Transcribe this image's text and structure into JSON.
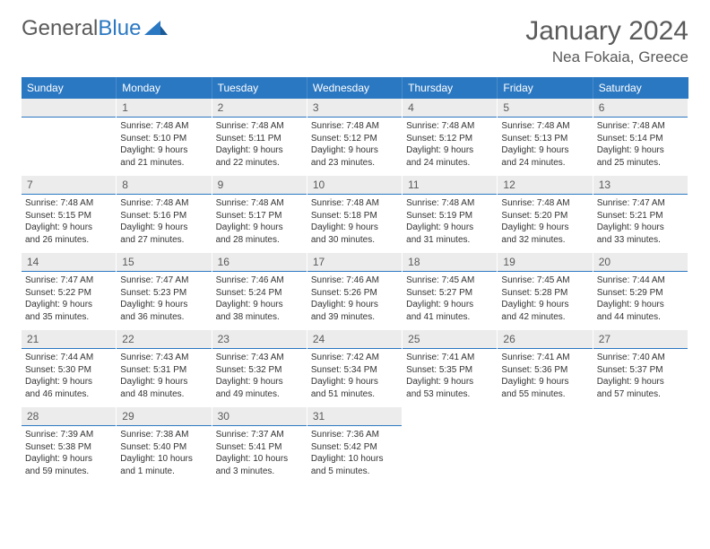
{
  "brand": {
    "part1": "General",
    "part2": "Blue"
  },
  "title": "January 2024",
  "location": "Nea Fokaia, Greece",
  "colors": {
    "accent": "#2b78c2",
    "dayHeader": "#ececec",
    "text": "#5a5a5a"
  },
  "weekdays": [
    "Sunday",
    "Monday",
    "Tuesday",
    "Wednesday",
    "Thursday",
    "Friday",
    "Saturday"
  ],
  "weeks": [
    [
      {
        "day": "",
        "lines": []
      },
      {
        "day": "1",
        "lines": [
          "Sunrise: 7:48 AM",
          "Sunset: 5:10 PM",
          "Daylight: 9 hours",
          "and 21 minutes."
        ]
      },
      {
        "day": "2",
        "lines": [
          "Sunrise: 7:48 AM",
          "Sunset: 5:11 PM",
          "Daylight: 9 hours",
          "and 22 minutes."
        ]
      },
      {
        "day": "3",
        "lines": [
          "Sunrise: 7:48 AM",
          "Sunset: 5:12 PM",
          "Daylight: 9 hours",
          "and 23 minutes."
        ]
      },
      {
        "day": "4",
        "lines": [
          "Sunrise: 7:48 AM",
          "Sunset: 5:12 PM",
          "Daylight: 9 hours",
          "and 24 minutes."
        ]
      },
      {
        "day": "5",
        "lines": [
          "Sunrise: 7:48 AM",
          "Sunset: 5:13 PM",
          "Daylight: 9 hours",
          "and 24 minutes."
        ]
      },
      {
        "day": "6",
        "lines": [
          "Sunrise: 7:48 AM",
          "Sunset: 5:14 PM",
          "Daylight: 9 hours",
          "and 25 minutes."
        ]
      }
    ],
    [
      {
        "day": "7",
        "lines": [
          "Sunrise: 7:48 AM",
          "Sunset: 5:15 PM",
          "Daylight: 9 hours",
          "and 26 minutes."
        ]
      },
      {
        "day": "8",
        "lines": [
          "Sunrise: 7:48 AM",
          "Sunset: 5:16 PM",
          "Daylight: 9 hours",
          "and 27 minutes."
        ]
      },
      {
        "day": "9",
        "lines": [
          "Sunrise: 7:48 AM",
          "Sunset: 5:17 PM",
          "Daylight: 9 hours",
          "and 28 minutes."
        ]
      },
      {
        "day": "10",
        "lines": [
          "Sunrise: 7:48 AM",
          "Sunset: 5:18 PM",
          "Daylight: 9 hours",
          "and 30 minutes."
        ]
      },
      {
        "day": "11",
        "lines": [
          "Sunrise: 7:48 AM",
          "Sunset: 5:19 PM",
          "Daylight: 9 hours",
          "and 31 minutes."
        ]
      },
      {
        "day": "12",
        "lines": [
          "Sunrise: 7:48 AM",
          "Sunset: 5:20 PM",
          "Daylight: 9 hours",
          "and 32 minutes."
        ]
      },
      {
        "day": "13",
        "lines": [
          "Sunrise: 7:47 AM",
          "Sunset: 5:21 PM",
          "Daylight: 9 hours",
          "and 33 minutes."
        ]
      }
    ],
    [
      {
        "day": "14",
        "lines": [
          "Sunrise: 7:47 AM",
          "Sunset: 5:22 PM",
          "Daylight: 9 hours",
          "and 35 minutes."
        ]
      },
      {
        "day": "15",
        "lines": [
          "Sunrise: 7:47 AM",
          "Sunset: 5:23 PM",
          "Daylight: 9 hours",
          "and 36 minutes."
        ]
      },
      {
        "day": "16",
        "lines": [
          "Sunrise: 7:46 AM",
          "Sunset: 5:24 PM",
          "Daylight: 9 hours",
          "and 38 minutes."
        ]
      },
      {
        "day": "17",
        "lines": [
          "Sunrise: 7:46 AM",
          "Sunset: 5:26 PM",
          "Daylight: 9 hours",
          "and 39 minutes."
        ]
      },
      {
        "day": "18",
        "lines": [
          "Sunrise: 7:45 AM",
          "Sunset: 5:27 PM",
          "Daylight: 9 hours",
          "and 41 minutes."
        ]
      },
      {
        "day": "19",
        "lines": [
          "Sunrise: 7:45 AM",
          "Sunset: 5:28 PM",
          "Daylight: 9 hours",
          "and 42 minutes."
        ]
      },
      {
        "day": "20",
        "lines": [
          "Sunrise: 7:44 AM",
          "Sunset: 5:29 PM",
          "Daylight: 9 hours",
          "and 44 minutes."
        ]
      }
    ],
    [
      {
        "day": "21",
        "lines": [
          "Sunrise: 7:44 AM",
          "Sunset: 5:30 PM",
          "Daylight: 9 hours",
          "and 46 minutes."
        ]
      },
      {
        "day": "22",
        "lines": [
          "Sunrise: 7:43 AM",
          "Sunset: 5:31 PM",
          "Daylight: 9 hours",
          "and 48 minutes."
        ]
      },
      {
        "day": "23",
        "lines": [
          "Sunrise: 7:43 AM",
          "Sunset: 5:32 PM",
          "Daylight: 9 hours",
          "and 49 minutes."
        ]
      },
      {
        "day": "24",
        "lines": [
          "Sunrise: 7:42 AM",
          "Sunset: 5:34 PM",
          "Daylight: 9 hours",
          "and 51 minutes."
        ]
      },
      {
        "day": "25",
        "lines": [
          "Sunrise: 7:41 AM",
          "Sunset: 5:35 PM",
          "Daylight: 9 hours",
          "and 53 minutes."
        ]
      },
      {
        "day": "26",
        "lines": [
          "Sunrise: 7:41 AM",
          "Sunset: 5:36 PM",
          "Daylight: 9 hours",
          "and 55 minutes."
        ]
      },
      {
        "day": "27",
        "lines": [
          "Sunrise: 7:40 AM",
          "Sunset: 5:37 PM",
          "Daylight: 9 hours",
          "and 57 minutes."
        ]
      }
    ],
    [
      {
        "day": "28",
        "lines": [
          "Sunrise: 7:39 AM",
          "Sunset: 5:38 PM",
          "Daylight: 9 hours",
          "and 59 minutes."
        ]
      },
      {
        "day": "29",
        "lines": [
          "Sunrise: 7:38 AM",
          "Sunset: 5:40 PM",
          "Daylight: 10 hours",
          "and 1 minute."
        ]
      },
      {
        "day": "30",
        "lines": [
          "Sunrise: 7:37 AM",
          "Sunset: 5:41 PM",
          "Daylight: 10 hours",
          "and 3 minutes."
        ]
      },
      {
        "day": "31",
        "lines": [
          "Sunrise: 7:36 AM",
          "Sunset: 5:42 PM",
          "Daylight: 10 hours",
          "and 5 minutes."
        ]
      },
      {
        "day": "",
        "lines": []
      },
      {
        "day": "",
        "lines": []
      },
      {
        "day": "",
        "lines": []
      }
    ]
  ]
}
